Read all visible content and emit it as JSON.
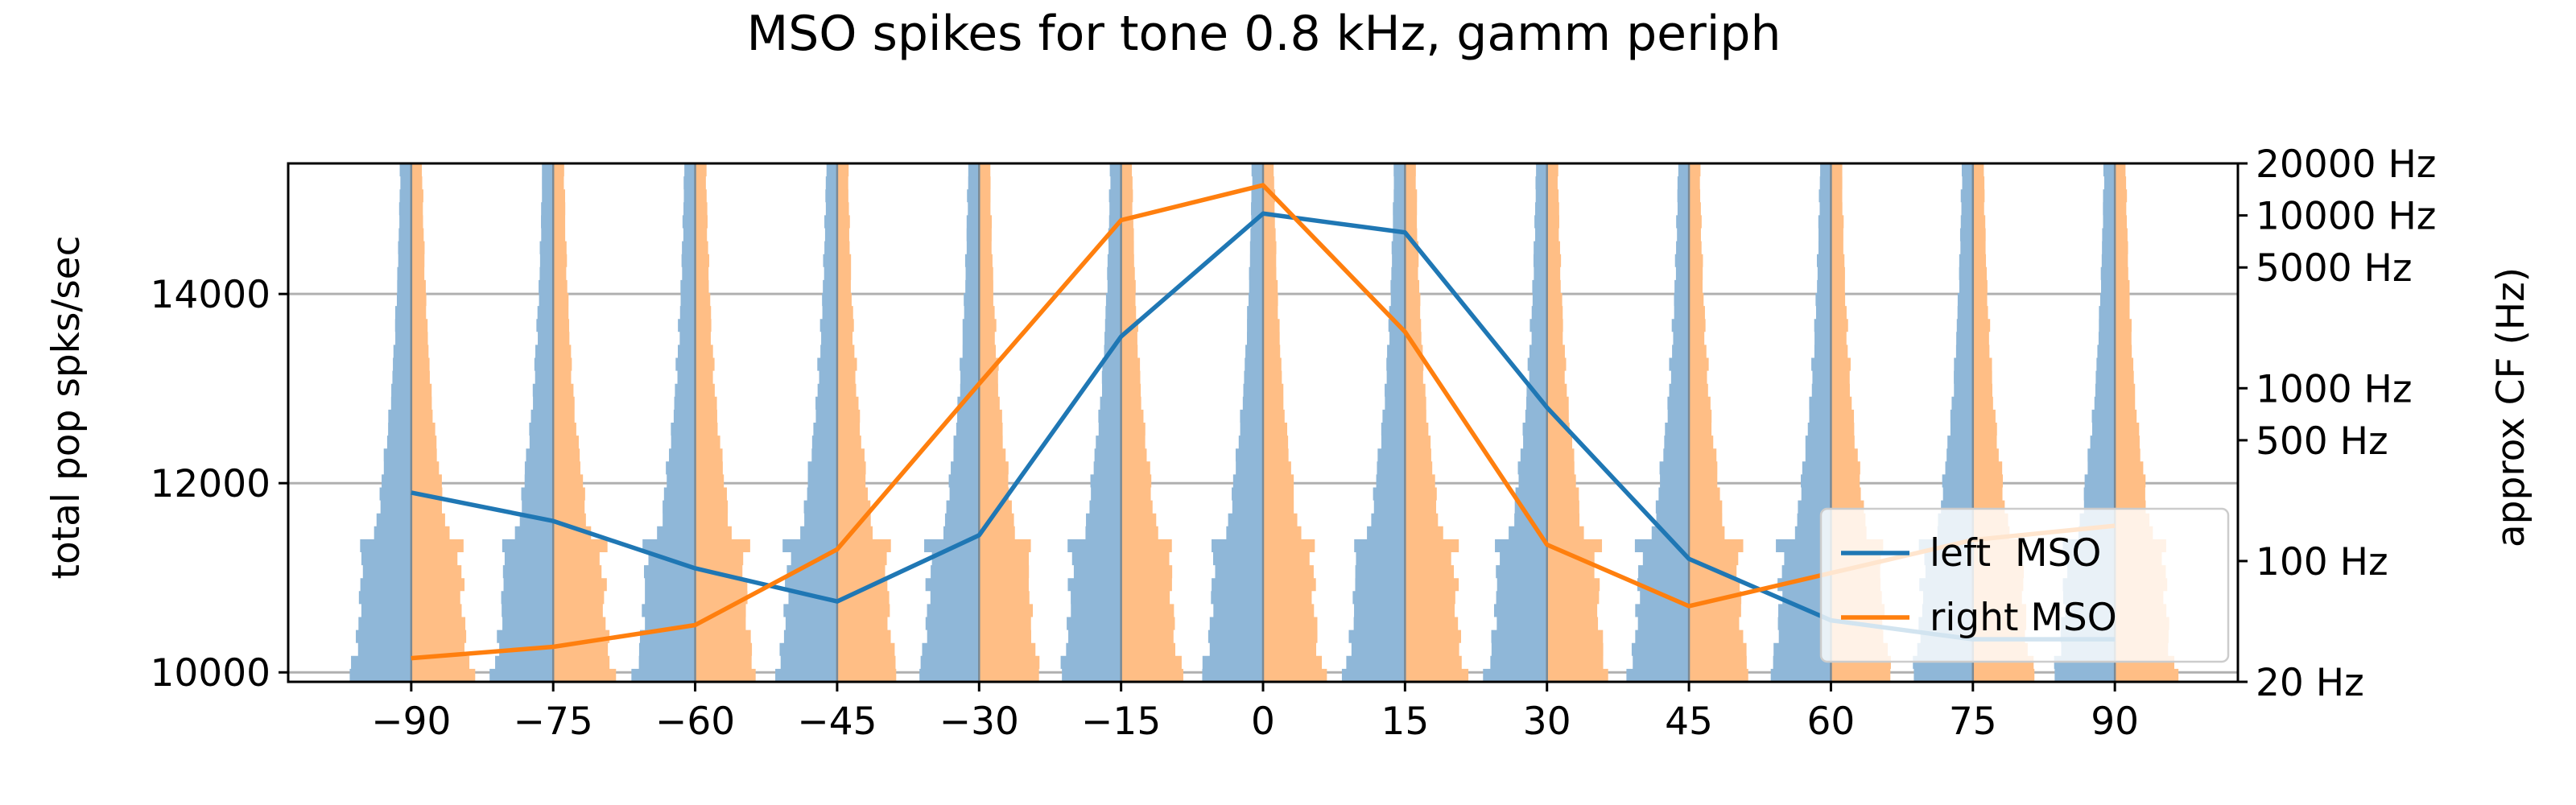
{
  "chart_data": {
    "type": "line",
    "title": "MSO spikes for tone 0.8 kHz, gamm periph",
    "ylabel": "total pop spks/sec",
    "y2label": "approx CF (Hz)",
    "x": [
      -90,
      -75,
      -60,
      -45,
      -30,
      -15,
      0,
      15,
      30,
      45,
      60,
      75,
      90
    ],
    "xticks": [
      "−90",
      "−75",
      "−60",
      "−45",
      "−30",
      "−15",
      "0",
      "15",
      "30",
      "45",
      "60",
      "75",
      "90"
    ],
    "xlim": [
      -103,
      103
    ],
    "ylim": [
      9900,
      15380
    ],
    "yticks": [
      10000,
      12000,
      14000
    ],
    "y2_scale": "log",
    "y2ticks": [
      {
        "value": 20,
        "label": "20 Hz"
      },
      {
        "value": 100,
        "label": "100 Hz"
      },
      {
        "value": 500,
        "label": "500 Hz"
      },
      {
        "value": 1000,
        "label": "1000 Hz"
      },
      {
        "value": 5000,
        "label": "5000 Hz"
      },
      {
        "value": 10000,
        "label": "10000 Hz"
      },
      {
        "value": 20000,
        "label": "20000 Hz"
      }
    ],
    "y2lim": [
      20,
      20000
    ],
    "grid": "horizontal",
    "legend_position": "lower-right",
    "series": [
      {
        "name": "left  MSO",
        "color": "#1f77b4",
        "values": [
          11900,
          11600,
          11100,
          10750,
          11450,
          13550,
          14850,
          14650,
          12800,
          11200,
          10550,
          10350,
          10350
        ]
      },
      {
        "name": "right MSO",
        "color": "#ff7f0e",
        "values": [
          10150,
          10270,
          10500,
          11300,
          13050,
          14780,
          15150,
          13600,
          11350,
          10700,
          11050,
          11400,
          11550
        ]
      }
    ],
    "histograms": {
      "left_color": "#8fb7d8",
      "right_color": "#ffbe85",
      "max_width_deg": 6.5,
      "profile": [
        1.0,
        0.95,
        0.9,
        0.88,
        0.85,
        0.84,
        0.82,
        0.84,
        0.8,
        0.78,
        0.86,
        0.6,
        0.55,
        0.52,
        0.5,
        0.48,
        0.46,
        0.43,
        0.4,
        0.38,
        0.36,
        0.34,
        0.32,
        0.3,
        0.31,
        0.28,
        0.26,
        0.27,
        0.25,
        0.24,
        0.23,
        0.22,
        0.22,
        0.21,
        0.2,
        0.2,
        0.19,
        0.19,
        0.18,
        0.18
      ]
    }
  }
}
